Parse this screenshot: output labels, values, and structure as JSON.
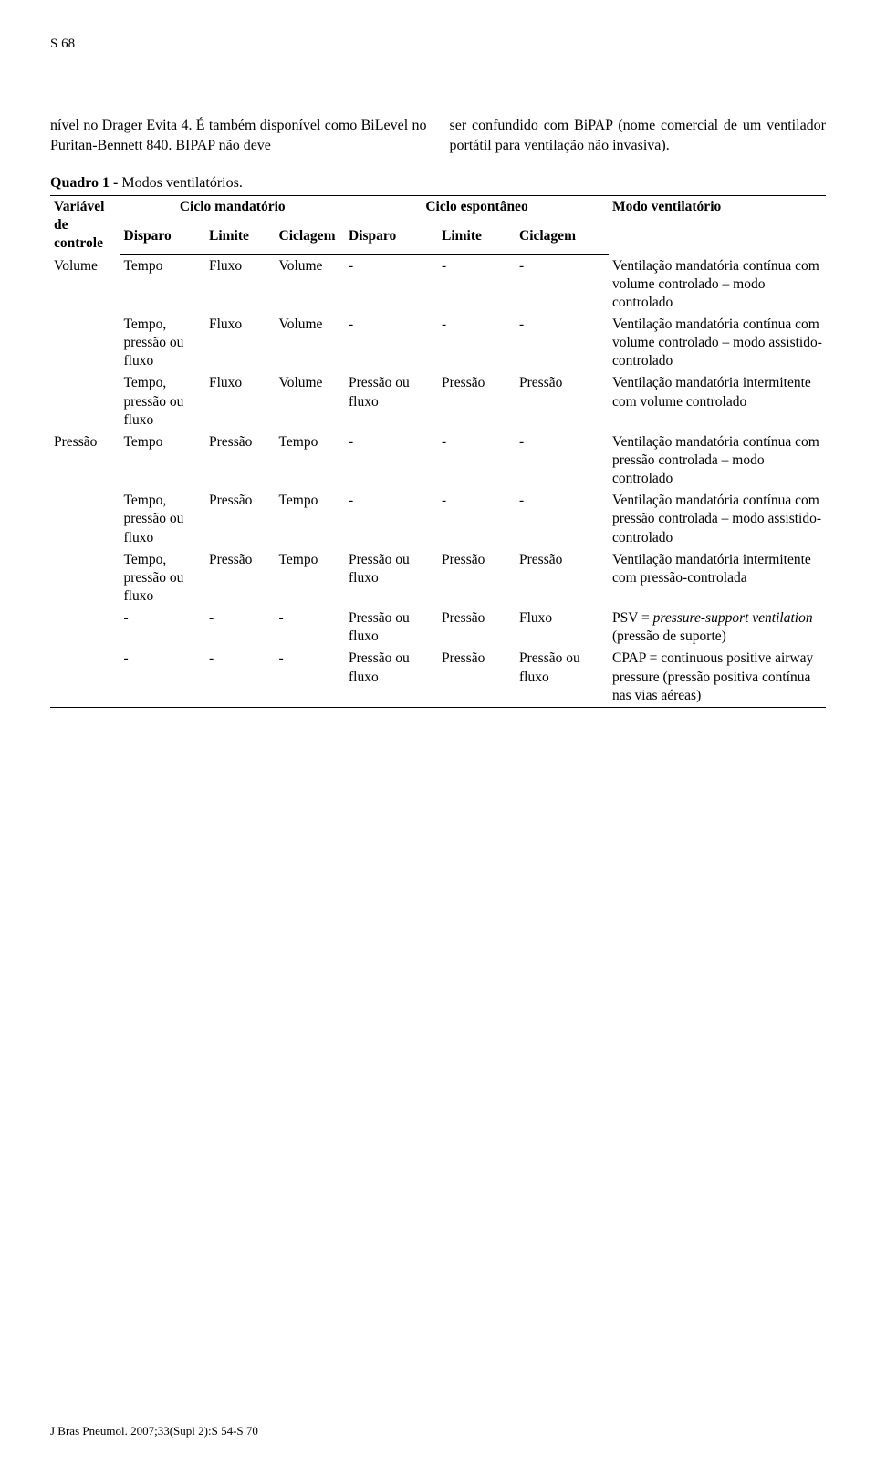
{
  "page_number": "S 68",
  "intro": {
    "left": "nível no Drager Evita 4. É também disponível como BiLevel no Puritan-Bennett 840. BIPAP não deve",
    "right": "ser confundido com BiPAP (nome comercial de um ventilador portátil para ventilação não invasiva)."
  },
  "table": {
    "title_bold": "Quadro 1 -",
    "title_rest": " Modos ventilatórios.",
    "header": {
      "var": "Variável de controle",
      "mand": "Ciclo mandatório",
      "esp": "Ciclo espontâneo",
      "modo": "Modo ventilatório",
      "sub": [
        "Disparo",
        "Limite",
        "Ciclagem",
        "Disparo",
        "Limite",
        "Ciclagem"
      ]
    },
    "rows": [
      {
        "v": "Volume",
        "d1": "Tempo",
        "l1": "Fluxo",
        "c1": "Volume",
        "d2": "-",
        "l2": "-",
        "c2": "-",
        "m": "Ventilação mandatória contínua com volume controlado – modo controlado"
      },
      {
        "v": "",
        "d1": "Tempo, pressão ou fluxo",
        "l1": "Fluxo",
        "c1": "Volume",
        "d2": "-",
        "l2": "-",
        "c2": "-",
        "m": "Ventilação mandatória contínua com volume controlado – modo assistido-controlado"
      },
      {
        "v": "",
        "d1": "Tempo, pressão ou fluxo",
        "l1": "Fluxo",
        "c1": "Volume",
        "d2": "Pressão ou fluxo",
        "l2": "Pressão",
        "c2": "Pressão",
        "m": "Ventilação mandatória intermitente com volume controlado"
      },
      {
        "v": "Pressão",
        "d1": "Tempo",
        "l1": "Pressão",
        "c1": "Tempo",
        "d2": "-",
        "l2": "-",
        "c2": "-",
        "m": "Ventilação mandatória contínua com pressão controlada – modo controlado"
      },
      {
        "v": "",
        "d1": "Tempo, pressão ou fluxo",
        "l1": "Pressão",
        "c1": "Tempo",
        "d2": "-",
        "l2": "-",
        "c2": "-",
        "m": "Ventilação mandatória contínua com pressão controlada – modo assistido-controlado"
      },
      {
        "v": "",
        "d1": "Tempo, pressão ou fluxo",
        "l1": "Pressão",
        "c1": "Tempo",
        "d2": "Pressão ou fluxo",
        "l2": "Pressão",
        "c2": "Pressão",
        "m": "Ventilação mandatória intermitente com pressão-controlada"
      },
      {
        "v": "",
        "d1": "-",
        "l1": "-",
        "c1": "-",
        "d2": "Pressão ou fluxo",
        "l2": "Pressão",
        "c2": "Fluxo",
        "m_html": "PSV = <span class='italic'>pressure-support ventilation</span> (pressão de suporte)"
      },
      {
        "v": "",
        "d1": "-",
        "l1": "-",
        "c1": "-",
        "d2": "Pressão ou fluxo",
        "l2": "Pressão",
        "c2": "Pressão ou fluxo",
        "m": "CPAP = continuous positive airway pressure (pressão positiva contínua nas vias aéreas)"
      }
    ]
  },
  "footer": "J Bras Pneumol. 2007;33(Supl 2):S 54-S 70"
}
